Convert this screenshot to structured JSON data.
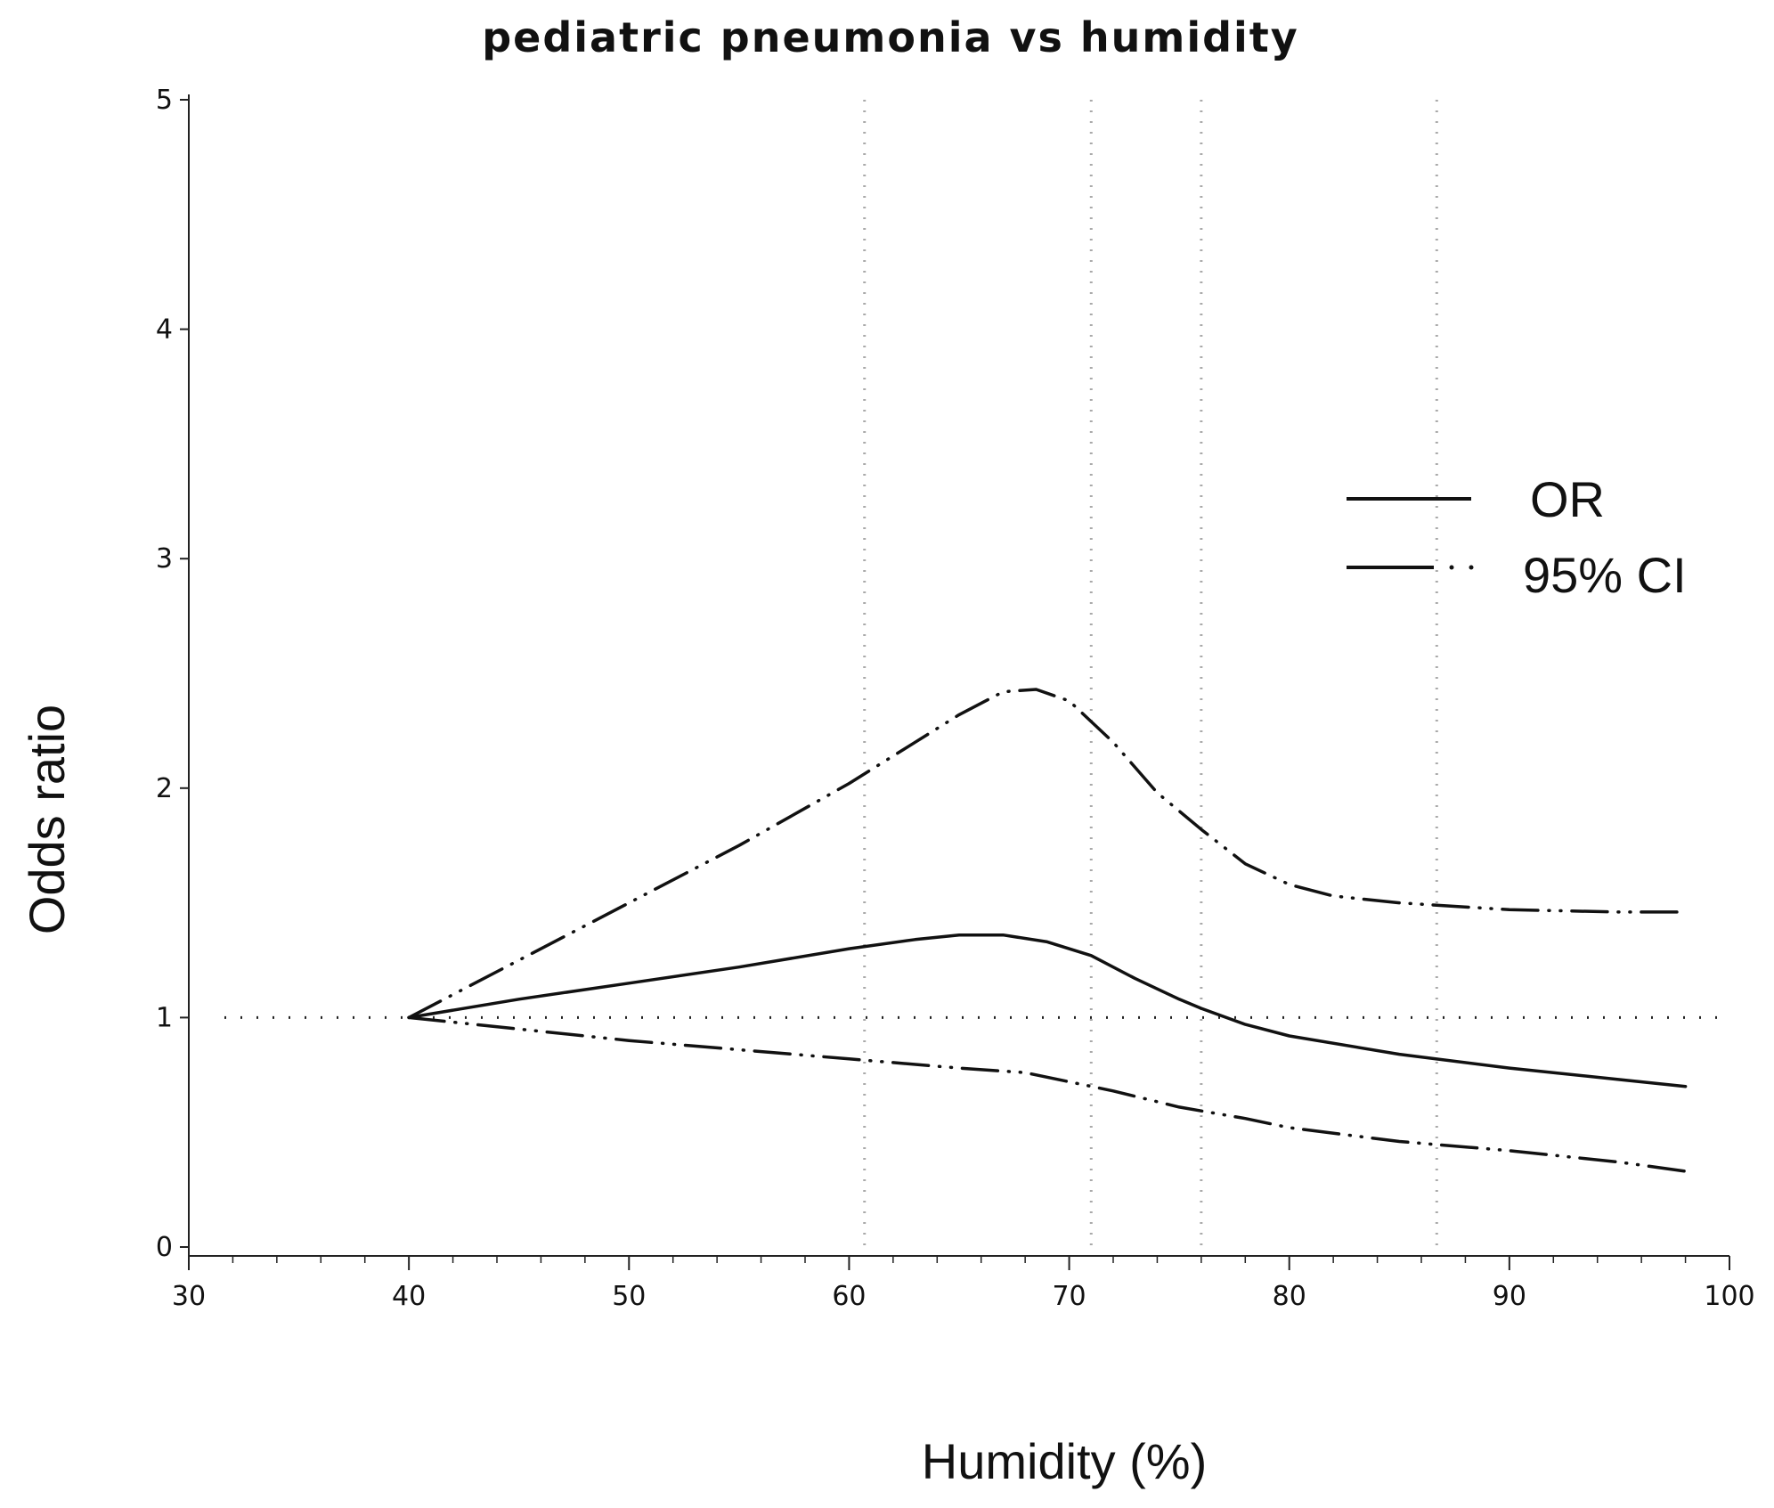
{
  "chart_data": {
    "type": "line",
    "title": "pediatric pneumonia vs humidity",
    "xlabel": "Humidity (%)",
    "ylabel": "Odds ratio",
    "xlim": [
      30,
      100
    ],
    "ylim": [
      0,
      5
    ],
    "x_ticks": [
      30,
      40,
      50,
      60,
      70,
      80,
      90,
      100
    ],
    "y_ticks": [
      0,
      1,
      2,
      3,
      4,
      5
    ],
    "x_tick_labels": [
      "30",
      "40",
      "50",
      "60",
      "70",
      "80",
      "90",
      "100"
    ],
    "y_tick_labels": [
      "0",
      "1",
      "2",
      "3",
      "4",
      "5"
    ],
    "reference_line_y": 1,
    "vertical_reference_lines_x": [
      60.7,
      71,
      76,
      86.7
    ],
    "legend": {
      "position": "right",
      "entries": [
        {
          "label": "OR",
          "style": "solid"
        },
        {
          "label": "95% CI",
          "style": "dash-dot-dot"
        }
      ]
    },
    "series": [
      {
        "name": "OR",
        "style": "solid",
        "x": [
          40,
          45,
          50,
          55,
          60,
          63,
          65,
          67,
          69,
          71,
          73,
          75,
          76,
          78,
          80,
          85,
          90,
          95,
          98
        ],
        "y": [
          1.0,
          1.08,
          1.15,
          1.22,
          1.3,
          1.34,
          1.36,
          1.36,
          1.33,
          1.27,
          1.17,
          1.08,
          1.04,
          0.97,
          0.92,
          0.84,
          0.78,
          0.73,
          0.7
        ]
      },
      {
        "name": "95% CI upper",
        "style": "dash-dot-dot",
        "x": [
          40,
          45,
          50,
          55,
          60,
          63,
          65,
          67,
          68.5,
          70,
          72,
          74,
          76,
          78,
          80,
          82,
          85,
          90,
          95,
          98
        ],
        "y": [
          1.0,
          1.25,
          1.5,
          1.75,
          2.02,
          2.2,
          2.32,
          2.42,
          2.43,
          2.38,
          2.2,
          1.98,
          1.82,
          1.67,
          1.58,
          1.53,
          1.5,
          1.47,
          1.46,
          1.46
        ]
      },
      {
        "name": "95% CI lower",
        "style": "dash-dot-dot",
        "x": [
          40,
          45,
          50,
          55,
          60,
          65,
          68,
          70,
          72,
          75,
          78,
          80,
          85,
          90,
          95,
          98
        ],
        "y": [
          1.0,
          0.95,
          0.9,
          0.86,
          0.82,
          0.78,
          0.76,
          0.72,
          0.68,
          0.61,
          0.56,
          0.52,
          0.46,
          0.42,
          0.37,
          0.33
        ]
      }
    ]
  }
}
